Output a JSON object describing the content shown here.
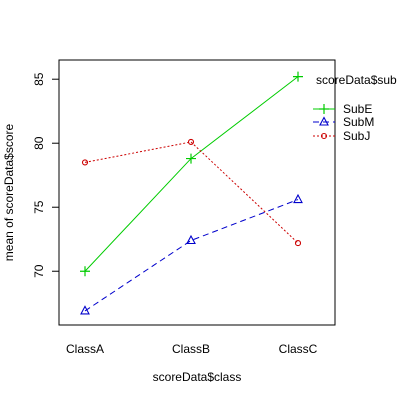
{
  "chart_data": {
    "type": "line",
    "title": "",
    "xlabel": "scoreData$class",
    "ylabel": "mean of scoreData$score",
    "categories": [
      "ClassA",
      "ClassB",
      "ClassC"
    ],
    "ylim": [
      65.8,
      86.5
    ],
    "y_ticks": [
      70,
      75,
      80,
      85
    ],
    "grid": false,
    "legend": {
      "title": "scoreData$sub",
      "position": "top-right"
    },
    "series": [
      {
        "name": "SubE",
        "values": [
          70.0,
          78.8,
          85.2
        ],
        "color": "#00cc00",
        "line_style": "solid",
        "marker": "plus"
      },
      {
        "name": "SubM",
        "values": [
          66.9,
          72.4,
          75.6
        ],
        "color": "#0000cc",
        "line_style": "dashed",
        "marker": "triangle"
      },
      {
        "name": "SubJ",
        "values": [
          78.5,
          80.1,
          72.2
        ],
        "color": "#cc0000",
        "line_style": "dotted",
        "marker": "circle"
      }
    ]
  }
}
